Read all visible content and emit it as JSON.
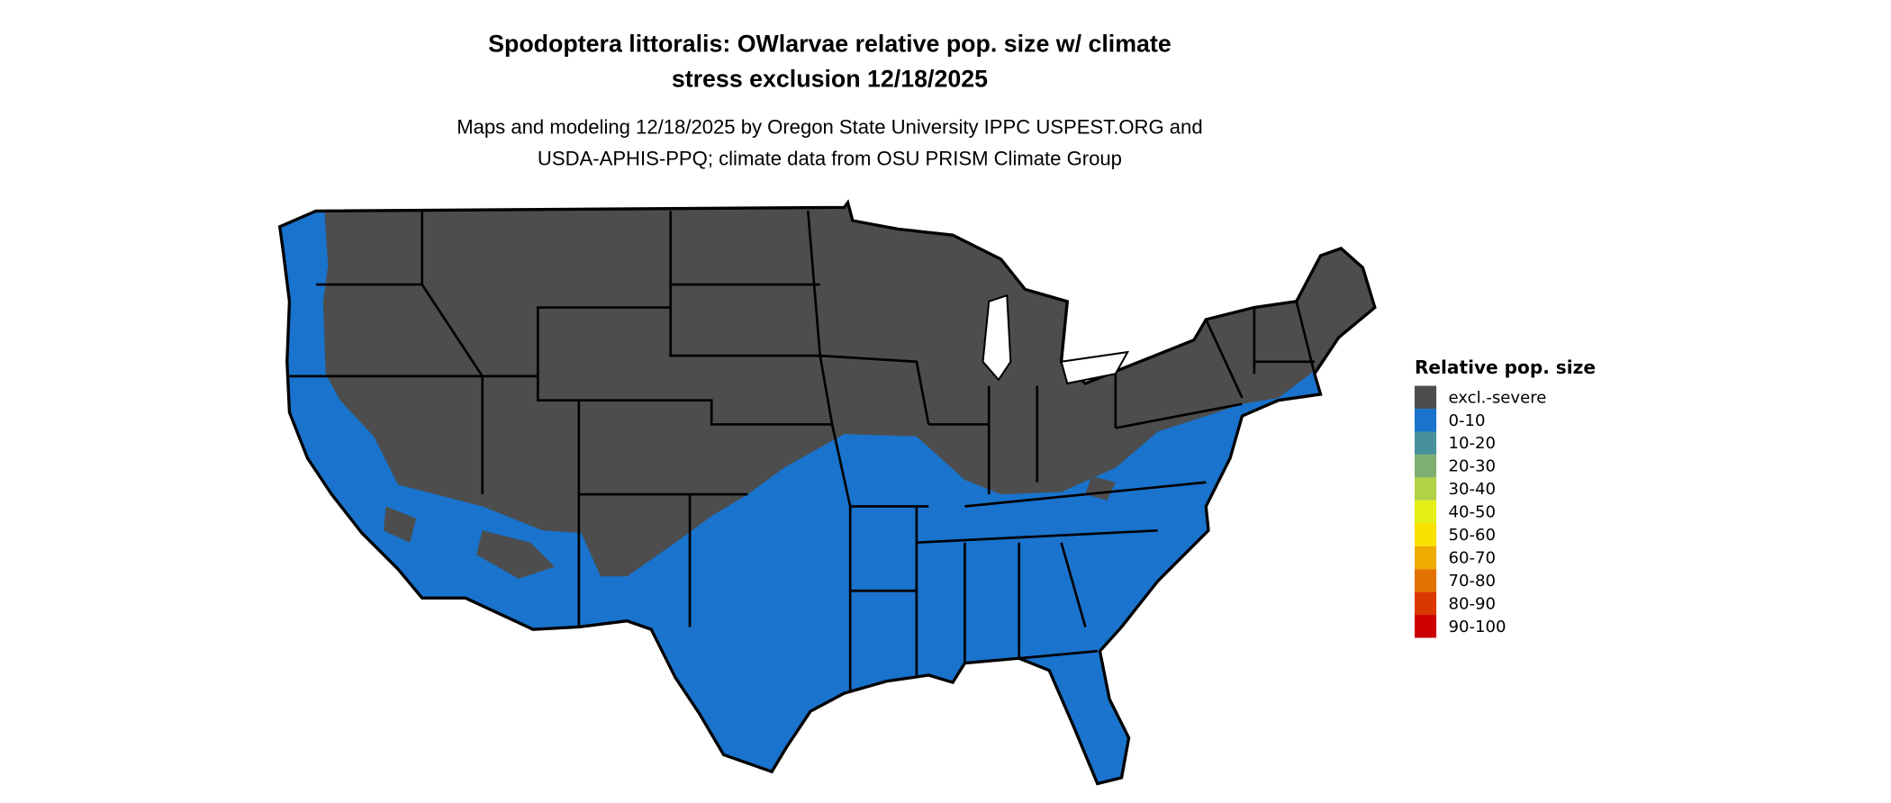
{
  "title": {
    "line1": "Spodoptera littoralis: OWlarvae relative pop. size w/ climate",
    "line2": "stress exclusion 12/18/2025"
  },
  "subtitle": {
    "line1": "Maps and modeling 12/18/2025 by Oregon State University IPPC USPEST.ORG and",
    "line2": "USDA-APHIS-PPQ; climate data from OSU PRISM Climate Group"
  },
  "map": {
    "region": "Contiguous United States",
    "border_color": "#000000",
    "background": "#ffffff",
    "dominant_classes": [
      "excl.-severe",
      "0-10"
    ]
  },
  "legend": {
    "title": "Relative pop. size",
    "items": [
      {
        "label": "excl.-severe",
        "color": "#4d4d4d"
      },
      {
        "label": "0-10",
        "color": "#1a73cc"
      },
      {
        "label": "10-20",
        "color": "#48919c"
      },
      {
        "label": "20-30",
        "color": "#7eb073"
      },
      {
        "label": "30-40",
        "color": "#b2d144"
      },
      {
        "label": "40-50",
        "color": "#e4f015"
      },
      {
        "label": "50-60",
        "color": "#f9e100"
      },
      {
        "label": "60-70",
        "color": "#efab00"
      },
      {
        "label": "70-80",
        "color": "#e47200"
      },
      {
        "label": "80-90",
        "color": "#db3700"
      },
      {
        "label": "90-100",
        "color": "#cc0000"
      }
    ]
  }
}
